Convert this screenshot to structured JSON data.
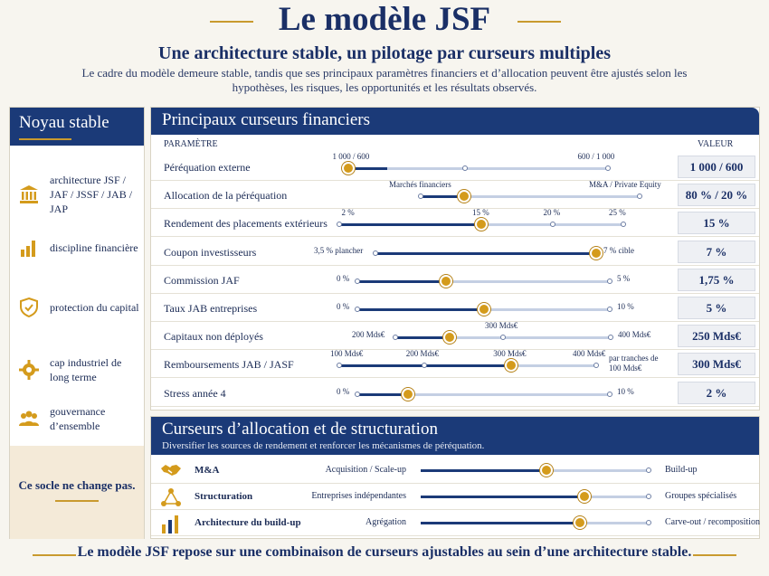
{
  "header": {
    "title": "Le modèle JSF",
    "subtitle": "Une architecture stable, un pilotage par curseurs multiples",
    "intro": "Le cadre du modèle demeure stable, tandis que ses principaux paramètres financiers et d’allocation peuvent être ajustés selon les hypothèses, les risques, les opportunités et les résultats observés."
  },
  "left_panel": {
    "title": "Noyau stable",
    "items": [
      {
        "icon": "bank-icon",
        "label": "architecture JSF / JAF / JSSF / JAB / JAP"
      },
      {
        "icon": "bar-chart-icon",
        "label": "discipline financière"
      },
      {
        "icon": "shield-check-icon",
        "label": "protection du capital"
      },
      {
        "icon": "gear-icon",
        "label": "cap industriel de long terme"
      },
      {
        "icon": "people-icon",
        "label": "gouvernance d’ensemble"
      }
    ],
    "bottom_note": "Ce socle ne change pas."
  },
  "financial_panel": {
    "title": "Principaux curseurs financiers",
    "col_param": "PARAMÈTRE",
    "col_value": "VALEUR",
    "rows": [
      {
        "label": "Péréquation externe",
        "value": "1 000 / 600",
        "level": 0.0,
        "ticks": [
          {
            "pos": 0.0,
            "text": "1 000 / 600"
          },
          {
            "pos": 0.45,
            "text": ""
          },
          {
            "pos": 1.0,
            "text": "600 / 1 000"
          }
        ],
        "fill": 0.15
      },
      {
        "label": "Allocation de la péréquation",
        "value": "80 % / 20 %",
        "level": 0.2,
        "ticks": [
          {
            "pos": 0.0,
            "text": "Marchés financiers"
          },
          {
            "pos": 1.0,
            "text": "M&A / Private Equity"
          }
        ],
        "fill": 0.2
      },
      {
        "label": "Rendement des placements extérieurs",
        "value": "15 %",
        "level": 0.5,
        "ticks": [
          {
            "pos": 0.0,
            "text": "2 %"
          },
          {
            "pos": 0.5,
            "text": "15 %"
          },
          {
            "pos": 0.75,
            "text": "20 %"
          },
          {
            "pos": 1.0,
            "text": "25 %"
          }
        ],
        "fill": 0.5
      },
      {
        "label": "Coupon investisseurs",
        "value": "7 %",
        "level": 1.0,
        "ticks": [
          {
            "pos": 0.0,
            "text": "3,5 % plancher"
          },
          {
            "pos": 1.0,
            "text": "7 % cible"
          }
        ],
        "fill": 1.0
      },
      {
        "label": "Commission JAF",
        "value": "1,75 %",
        "level": 0.35,
        "ticks": [
          {
            "pos": 0.0,
            "text": "0 %"
          },
          {
            "pos": 1.0,
            "text": "5 %"
          }
        ],
        "fill": 0.35
      },
      {
        "label": "Taux JAB entreprises",
        "value": "5 %",
        "level": 0.5,
        "ticks": [
          {
            "pos": 0.0,
            "text": "0 %"
          },
          {
            "pos": 1.0,
            "text": "10 %"
          }
        ],
        "fill": 0.5
      },
      {
        "label": "Capitaux non déployés",
        "value": "250 Mds€",
        "level": 0.25,
        "ticks": [
          {
            "pos": 0.0,
            "text": "200 Mds€"
          },
          {
            "pos": 0.5,
            "text": "300 Mds€"
          },
          {
            "pos": 1.0,
            "text": "400 Mds€"
          }
        ],
        "fill": 0.25
      },
      {
        "label": "Remboursements JAB / JASF",
        "value": "300 Mds€",
        "level": 0.67,
        "ticks": [
          {
            "pos": 0.0,
            "text": "100 Mds€"
          },
          {
            "pos": 0.33,
            "text": "200 Mds€"
          },
          {
            "pos": 0.67,
            "text": "300 Mds€"
          },
          {
            "pos": 1.0,
            "text": "400 Mds€"
          }
        ],
        "right_note": "par tranches de 100 Mds€",
        "fill": 0.67
      },
      {
        "label": "Stress année 4",
        "value": "2 %",
        "level": 0.2,
        "ticks": [
          {
            "pos": 0.0,
            "text": "0 %"
          },
          {
            "pos": 1.0,
            "text": "10 %"
          }
        ],
        "fill": 0.2
      }
    ]
  },
  "allocation_panel": {
    "title": "Curseurs d’allocation et de structuration",
    "subtitle": "Diversifier les sources de rendement et renforcer les mécanismes de péréquation.",
    "rows": [
      {
        "icon": "handshake-icon",
        "label": "M&A",
        "left": "Acquisition / Scale-up",
        "right": "Build-up",
        "level": 0.55
      },
      {
        "icon": "network-icon",
        "label": "Structuration",
        "left": "Entreprises indépendantes",
        "right": "Groupes spécialisés",
        "level": 0.72
      },
      {
        "icon": "bar-chart-icon",
        "label": "Architecture du build-up",
        "left": "Agrégation",
        "right": "Carve-out / recomposition",
        "level": 0.7
      }
    ]
  },
  "footer": {
    "text": "Le modèle JSF repose sur une combinaison de curseurs ajustables au sein d’une architecture stable."
  },
  "colors": {
    "navy": "#1b3a78",
    "gold": "#d49b1c",
    "background": "#f7f5ef"
  }
}
